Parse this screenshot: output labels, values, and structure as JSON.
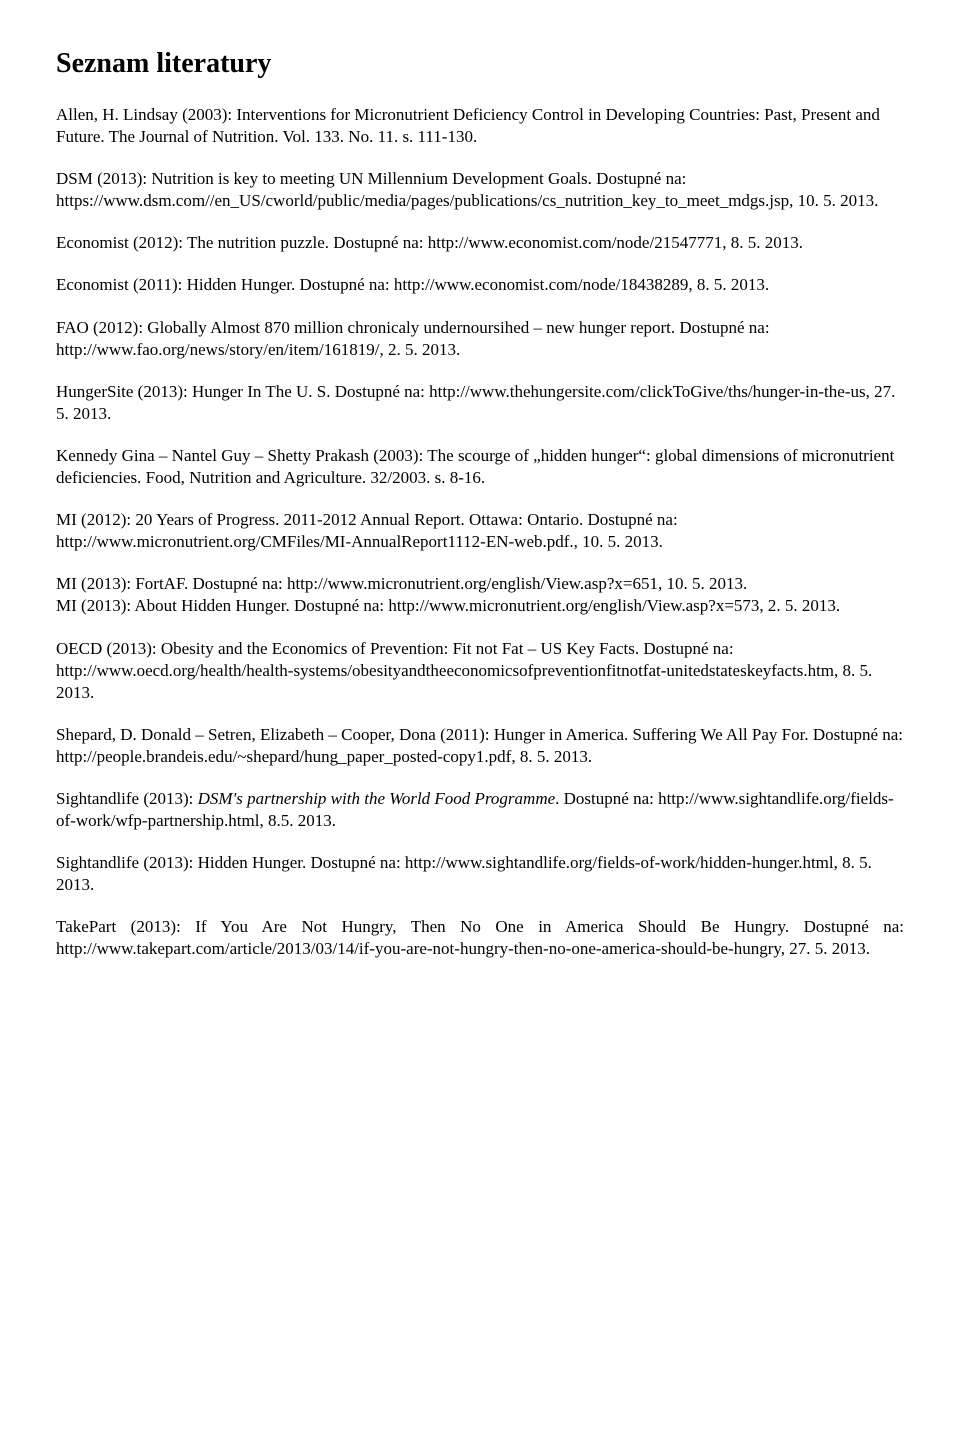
{
  "title": "Seznam literatury",
  "entries": [
    {
      "html": "Allen, H. Lindsay (2003): Interventions for Micronutrient Deficiency Control in Developing Countries: Past, Present and Future. The Journal of Nutrition. Vol. 133. No. 11. s. 111-130."
    },
    {
      "html": "DSM (2013): Nutrition is key to meeting UN Millennium Development Goals. Dostupné na: https://www.dsm.com//en_US/cworld/public/media/pages/publications/cs_nutrition_key_to_meet_mdgs.jsp, 10. 5. 2013."
    },
    {
      "html": "Economist (2012): The nutrition puzzle. Dostupné na: http://www.economist.com/node/21547771, 8. 5. 2013."
    },
    {
      "html": "Economist (2011): Hidden Hunger. Dostupné na: http://www.economist.com/node/18438289, 8. 5. 2013."
    },
    {
      "html": "FAO (2012): Globally Almost 870 million chronicaly undernoursihed – new hunger report. Dostupné na: http://www.fao.org/news/story/en/item/161819/, 2. 5. 2013."
    },
    {
      "html": "HungerSite (2013): Hunger In The U. S. Dostupné na: http://www.thehungersite.com/clickToGive/ths/hunger-in-the-us, 27. 5. 2013."
    },
    {
      "html": "Kennedy Gina &ndash; Nantel Guy &ndash; Shetty Prakash (2003): The scourge of &bdquo;hidden hunger&ldquo;: global dimensions of micronutrient deficiencies. Food, Nutrition and Agriculture. 32/2003. s. 8-16."
    },
    {
      "html": "MI (2012): 20 Years of Progress. 2011-2012 Annual Report. Ottawa: Ontario. Dostupné na: http://www.micronutrient.org/CMFiles/MI-AnnualReport1112-EN-web.pdf., 10. 5. 2013."
    },
    {
      "html": "MI (2013): FortAF. Dostupné na: http://www.micronutrient.org/english/View.asp?x=651, 10. 5. 2013.",
      "class": "nogap"
    },
    {
      "html": "MI (2013): About Hidden Hunger. Dostupné na: http://www.micronutrient.org/english/View.asp?x=573, 2. 5. 2013."
    },
    {
      "html": "OECD (2013): Obesity and the Economics of Prevention: Fit not Fat &ndash; US Key Facts. Dostupné na: http://www.oecd.org/health/health-systems/obesityandtheeconomicsofpreventionfitnotfat-unitedstateskeyfacts.htm, 8. 5. 2013."
    },
    {
      "html": "Shepard, D. Donald &ndash; Setren, Elizabeth &ndash; Cooper, Dona (2011): Hunger in America. Suffering We All Pay For. Dostupné na: http://people.brandeis.edu/~shepard/hung_paper_posted-copy1.pdf, 8. 5. 2013."
    },
    {
      "html": "Sightandlife (2013): <em>DSM's partnership with the World Food Programme</em>. Dostupné na: http://www.sightandlife.org/fields-of-work/wfp-partnership.html, 8.5. 2013."
    },
    {
      "html": "Sightandlife (2013): Hidden Hunger. Dostupné na: http://www.sightandlife.org/fields-of-work/hidden-hunger.html, 8. 5. 2013."
    },
    {
      "html": "TakePart (2013): If You Are Not Hungry, Then No One in America Should Be Hungry. Dostupné na: http://www.takepart.com/article/2013/03/14/if-you-are-not-hungry-then-no-one-america-should-be-hungry, 27. 5. 2013.",
      "class": "justify"
    }
  ]
}
